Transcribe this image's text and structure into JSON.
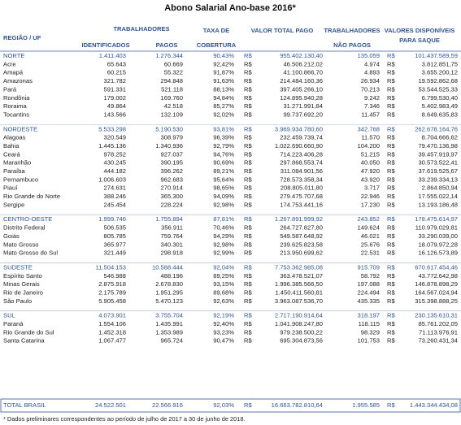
{
  "title": "Abono Salarial Ano-base 2016*",
  "header": {
    "region": "REGIÃO / UF",
    "workers": "TRABALHADORES",
    "identified": "IDENTIFICADOS",
    "paid": "PAGOS",
    "coverage": [
      "TAXA DE",
      "COBERTURA"
    ],
    "total_paid": "VALOR TOTAL PAGO",
    "unpaid": [
      "TRABALHADORES",
      "NÃO PAGOS"
    ],
    "available": [
      "VALORES DISPONÍVEIS",
      "PARA SAQUE"
    ]
  },
  "groups": [
    {
      "summary": [
        "NORTE",
        "1.411.403",
        "1.276.344",
        "90,43%",
        "R$",
        "955.402.130,40",
        "135.059",
        "R$",
        "101.437.589,59"
      ],
      "rows": [
        [
          "Acre",
          "65.643",
          "60.669",
          "92,42%",
          "R$",
          "46.506.212,02",
          "4.974",
          "R$",
          "3.812.851,75"
        ],
        [
          "Amapá",
          "60.215",
          "55.322",
          "91,87%",
          "R$",
          "41.100.866,70",
          "4.893",
          "R$",
          "3.655.200,12"
        ],
        [
          "Amazonas",
          "321.782",
          "294.848",
          "91,63%",
          "R$",
          "214.484.160,36",
          "26.934",
          "R$",
          "19.592.862,68"
        ],
        [
          "Pará",
          "591.331",
          "521.118",
          "88,13%",
          "R$",
          "397.405.266,10",
          "70.213",
          "R$",
          "53.544.525,33"
        ],
        [
          "Rondônia",
          "179.002",
          "169.760",
          "94,84%",
          "R$",
          "124.895.940,28",
          "9.242",
          "R$",
          "6.799.530,40"
        ],
        [
          "Roraima",
          "49.864",
          "42.518",
          "85,27%",
          "R$",
          "31.271.991,84",
          "7.346",
          "R$",
          "5.402.983,49"
        ],
        [
          "Tocantins",
          "143.566",
          "132.109",
          "92,02%",
          "R$",
          "99.737.692,20",
          "11.457",
          "R$",
          "8.649.635,83"
        ]
      ]
    },
    {
      "summary": [
        "NORDESTE",
        "5.533.298",
        "5.190.530",
        "93,81%",
        "R$",
        "3.969.934.780,60",
        "342.768",
        "R$",
        "262.678.164,76"
      ],
      "rows": [
        [
          "Alagoas",
          "320.549",
          "308.979",
          "96,39%",
          "R$",
          "232.459.739,74",
          "11.570",
          "R$",
          "8.704.666,62"
        ],
        [
          "Bahia",
          "1.445.136",
          "1.340.936",
          "92,79%",
          "R$",
          "1.022.690.660,90",
          "104.200",
          "R$",
          "79.470.136,98"
        ],
        [
          "Ceará",
          "978.252",
          "927.037",
          "94,76%",
          "R$",
          "714.223.406,28",
          "51.215",
          "R$",
          "39.457.919,97"
        ],
        [
          "Maranhão",
          "430.245",
          "390.195",
          "90,69%",
          "R$",
          "297.868.553,74",
          "40.050",
          "R$",
          "30.573.522,41"
        ],
        [
          "Paraíba",
          "444.182",
          "396.262",
          "89,21%",
          "R$",
          "311.084.901,56",
          "47.920",
          "R$",
          "37.619.525,67"
        ],
        [
          "Pernambuco",
          "1.006.603",
          "962.683",
          "95,64%",
          "R$",
          "728.573.358,34",
          "43.920",
          "R$",
          "33.239.334,13"
        ],
        [
          "Piauí",
          "274.631",
          "270.914",
          "98,65%",
          "R$",
          "208.805.011,80",
          "3.717",
          "R$",
          "2.864.850,94"
        ],
        [
          "Rio Grande do Norte",
          "388.246",
          "365.300",
          "94,09%",
          "R$",
          "279.475.707,68",
          "22.946",
          "R$",
          "17.555.022,14"
        ],
        [
          "Sergipe",
          "245.454",
          "228.224",
          "92,98%",
          "R$",
          "174.753.441,16",
          "17.230",
          "R$",
          "13.193.186,48"
        ]
      ]
    },
    {
      "summary": [
        "CENTRO-OESTE",
        "1.999.746",
        "1.755.894",
        "87,81%",
        "R$",
        "1.267.891.999,92",
        "243.852",
        "R$",
        "178.475.614,97"
      ],
      "rows": [
        [
          "Distrito Federal",
          "506.535",
          "356.911",
          "70,46%",
          "R$",
          "264.727.827,80",
          "149.624",
          "R$",
          "110.979.029,81"
        ],
        [
          "Goiás",
          "805.785",
          "759.764",
          "94,29%",
          "R$",
          "549.587.648,92",
          "46.021",
          "R$",
          "33.290.039,00"
        ],
        [
          "Mato Grosso",
          "365.977",
          "340.301",
          "92,98%",
          "R$",
          "239.625.823,58",
          "25.676",
          "R$",
          "18.079.972,28"
        ],
        [
          "Mato Grosso do Sul",
          "321.449",
          "298.918",
          "92,99%",
          "R$",
          "213.950.699,62",
          "22.531",
          "R$",
          "16.126.573,89"
        ]
      ]
    },
    {
      "summary": [
        "SUDESTE",
        "11.504.153",
        "10.588.444",
        "92,04%",
        "R$",
        "7.753.362.985,08",
        "915.709",
        "R$",
        "670.617.454,46"
      ],
      "rows": [
        [
          "Espírito Santo",
          "546.988",
          "488.196",
          "89,25%",
          "R$",
          "363.478.521,07",
          "58.792",
          "R$",
          "43.772.642,98"
        ],
        [
          "Minas Gerais",
          "2.875.918",
          "2.678.830",
          "93,15%",
          "R$",
          "1.996.385.566,50",
          "197.088",
          "R$",
          "146.878.898,29"
        ],
        [
          "Rio de Janeiro",
          "2.175.789",
          "1.951.295",
          "89,68%",
          "R$",
          "1.450.411.560,81",
          "224.494",
          "R$",
          "164.567.024,94"
        ],
        [
          "São Paulo",
          "5.905.458",
          "5.470.123",
          "92,63%",
          "R$",
          "3.963.087.536,70",
          "435.335",
          "R$",
          "315.398.888,25"
        ]
      ]
    },
    {
      "summary": [
        "SUL",
        "4.073.901",
        "3.755.704",
        "92,19%",
        "R$",
        "2.717.190.914,64",
        "318.197",
        "R$",
        "230.135.610,31"
      ],
      "rows": [
        [
          "Paraná",
          "1.554.106",
          "1.435.991",
          "92,40%",
          "R$",
          "1.041.908.247,80",
          "118.115",
          "R$",
          "85.761.202,05"
        ],
        [
          "Rio Grande do Sul",
          "1.452.318",
          "1.353.989",
          "93,23%",
          "R$",
          "979.238.500,22",
          "98.329",
          "R$",
          "71.113.976,91"
        ],
        [
          "Santa Catarina",
          "1.067.477",
          "965.724",
          "90,47%",
          "R$",
          "695.304.873,56",
          "101.753",
          "R$",
          "73.260.431,34"
        ]
      ]
    }
  ],
  "total": [
    "TOTAL BRASIL",
    "24.522.501",
    "22.566.916",
    "92,03%",
    "R$",
    "16.663.782.810,64",
    "1.955.585",
    "R$",
    "1.443.344.434,08"
  ],
  "footnote": "* Dados preliminares correspondentes ao período de julho de 2017 a 30 de junho de 2018."
}
